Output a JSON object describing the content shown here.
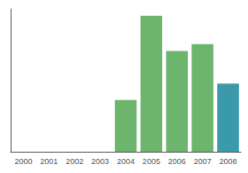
{
  "chart_data": {
    "type": "bar",
    "categories": [
      "2000",
      "2001",
      "2002",
      "2003",
      "2004",
      "2005",
      "2006",
      "2007",
      "2008"
    ],
    "values": [
      0,
      0,
      0,
      0,
      38,
      100,
      74,
      79,
      50
    ],
    "colors": [
      "#6db56d",
      "#6db56d",
      "#6db56d",
      "#6db56d",
      "#6db56d",
      "#6db56d",
      "#6db56d",
      "#6db56d",
      "#3a9aab"
    ],
    "ylim": [
      0,
      105
    ],
    "grid": false,
    "tick_labels": "x"
  }
}
